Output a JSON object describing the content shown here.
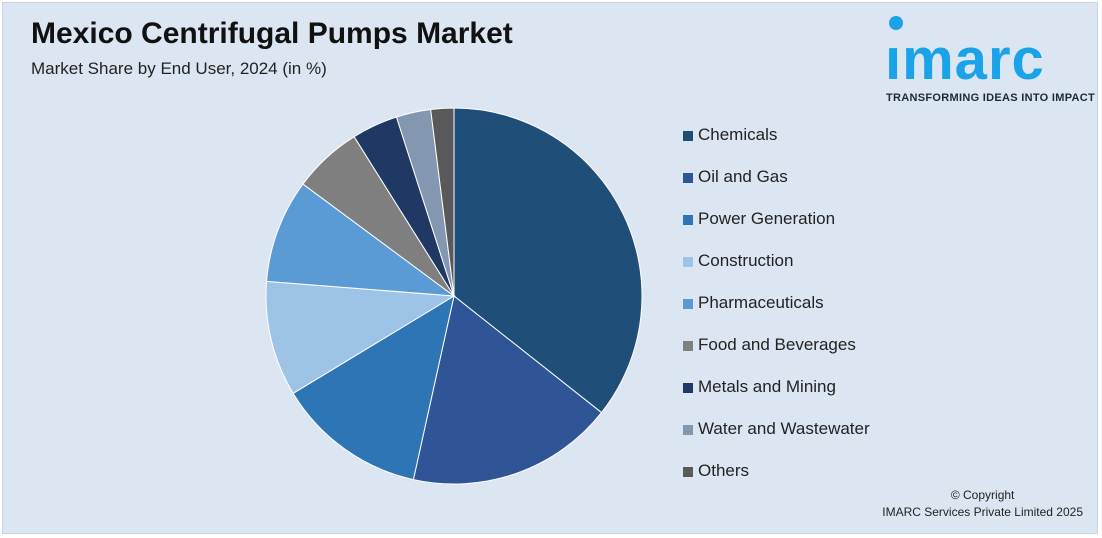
{
  "header": {
    "title": "Mexico Centrifugal Pumps Market",
    "subtitle": "Market Share by End User, 2024 (in %)"
  },
  "logo": {
    "word": "ımarc",
    "tagline": "TRANSFORMING IDEAS INTO IMPACT",
    "color": "#1aa3e8"
  },
  "footer": {
    "copyright": "© Copyright",
    "company": "IMARC Services Private Limited 2025"
  },
  "chart_data": {
    "type": "pie",
    "start_angle_deg": 0,
    "direction": "clockwise",
    "slices": [
      {
        "label": "Chemicals",
        "value": 36,
        "color": "#1f4e79"
      },
      {
        "label": "Oil and Gas",
        "value": 18,
        "color": "#2f5597"
      },
      {
        "label": "Power Generation",
        "value": 13,
        "color": "#2e75b6"
      },
      {
        "label": "Construction",
        "value": 10,
        "color": "#9dc3e6"
      },
      {
        "label": "Pharmaceuticals",
        "value": 9,
        "color": "#5b9bd5"
      },
      {
        "label": "Food and Beverages",
        "value": 6,
        "color": "#7f7f7f"
      },
      {
        "label": "Metals and Mining",
        "value": 4,
        "color": "#203864"
      },
      {
        "label": "Water and Wastewater",
        "value": 3,
        "color": "#8497b0"
      },
      {
        "label": "Others",
        "value": 2,
        "color": "#595959"
      }
    ],
    "legend": "right"
  }
}
